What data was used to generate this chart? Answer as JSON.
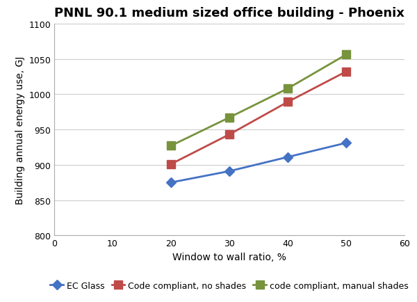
{
  "title": "PNNL 90.1 medium sized office building - Phoenix",
  "xlabel": "Window to wall ratio, %",
  "ylabel": "Building annual energy use, GJ",
  "xlim": [
    0,
    60
  ],
  "ylim": [
    800,
    1100
  ],
  "xticks": [
    0,
    10,
    20,
    30,
    40,
    50,
    60
  ],
  "yticks": [
    800,
    850,
    900,
    950,
    1000,
    1050,
    1100
  ],
  "x_values": [
    20,
    30,
    40,
    50
  ],
  "ec_glass": [
    875,
    891,
    911,
    931
  ],
  "code_no_shades": [
    901,
    943,
    989,
    1032
  ],
  "code_manual_shades": [
    927,
    967,
    1008,
    1056
  ],
  "ec_glass_color": "#4472C4",
  "code_no_shades_color": "#BE4B48",
  "code_manual_shades_color": "#77933C",
  "ec_glass_label": "EC Glass",
  "code_no_shades_label": "Code compliant, no shades",
  "code_manual_shades_label": "code compliant, manual shades",
  "marker_ec": "D",
  "marker_code": "s",
  "linewidth": 2.0,
  "markersize_ec": 7,
  "markersize_code": 8,
  "title_fontsize": 13,
  "axis_label_fontsize": 10,
  "tick_fontsize": 9,
  "legend_fontsize": 9,
  "background_color": "#FFFFFF",
  "grid_color": "#CCCCCC"
}
